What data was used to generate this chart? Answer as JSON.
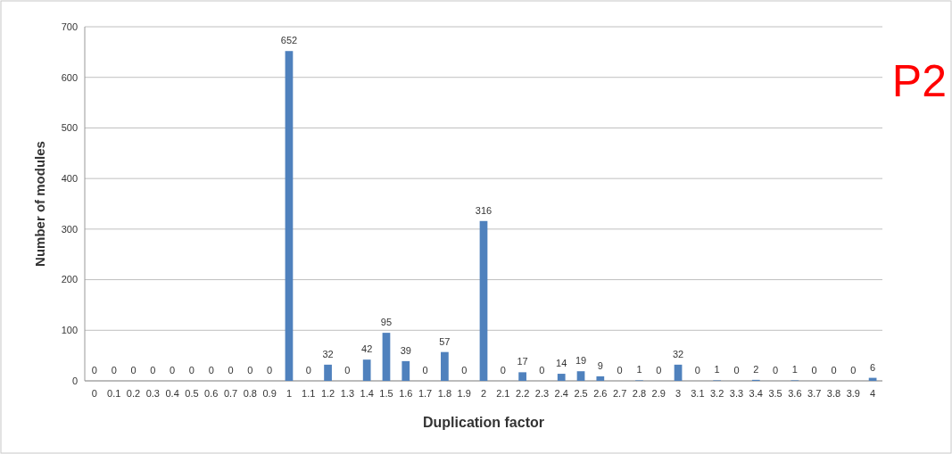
{
  "chart_data": {
    "type": "bar",
    "xlabel": "Duplication factor",
    "ylabel": "Number of modules",
    "categories": [
      "0",
      "0.1",
      "0.2",
      "0.3",
      "0.4",
      "0.5",
      "0.6",
      "0.7",
      "0.8",
      "0.9",
      "1",
      "1.1",
      "1.2",
      "1.3",
      "1.4",
      "1.5",
      "1.6",
      "1.7",
      "1.8",
      "1.9",
      "2",
      "2.1",
      "2.2",
      "2.3",
      "2.4",
      "2.5",
      "2.6",
      "2.7",
      "2.8",
      "2.9",
      "3",
      "3.1",
      "3.2",
      "3.3",
      "3.4",
      "3.5",
      "3.6",
      "3.7",
      "3.8",
      "3.9",
      "4"
    ],
    "values": [
      0,
      0,
      0,
      0,
      0,
      0,
      0,
      0,
      0,
      0,
      652,
      0,
      32,
      0,
      42,
      95,
      39,
      0,
      57,
      0,
      316,
      0,
      17,
      0,
      14,
      19,
      9,
      0,
      1,
      0,
      32,
      0,
      1,
      0,
      2,
      0,
      1,
      0,
      0,
      0,
      6
    ],
    "color": "#4f81bd",
    "ylim": [
      0,
      700
    ],
    "yticks": [
      0,
      100,
      200,
      300,
      400,
      500,
      600,
      700
    ],
    "grid": "y",
    "data_labels": true,
    "annotations": [
      "P2"
    ]
  }
}
